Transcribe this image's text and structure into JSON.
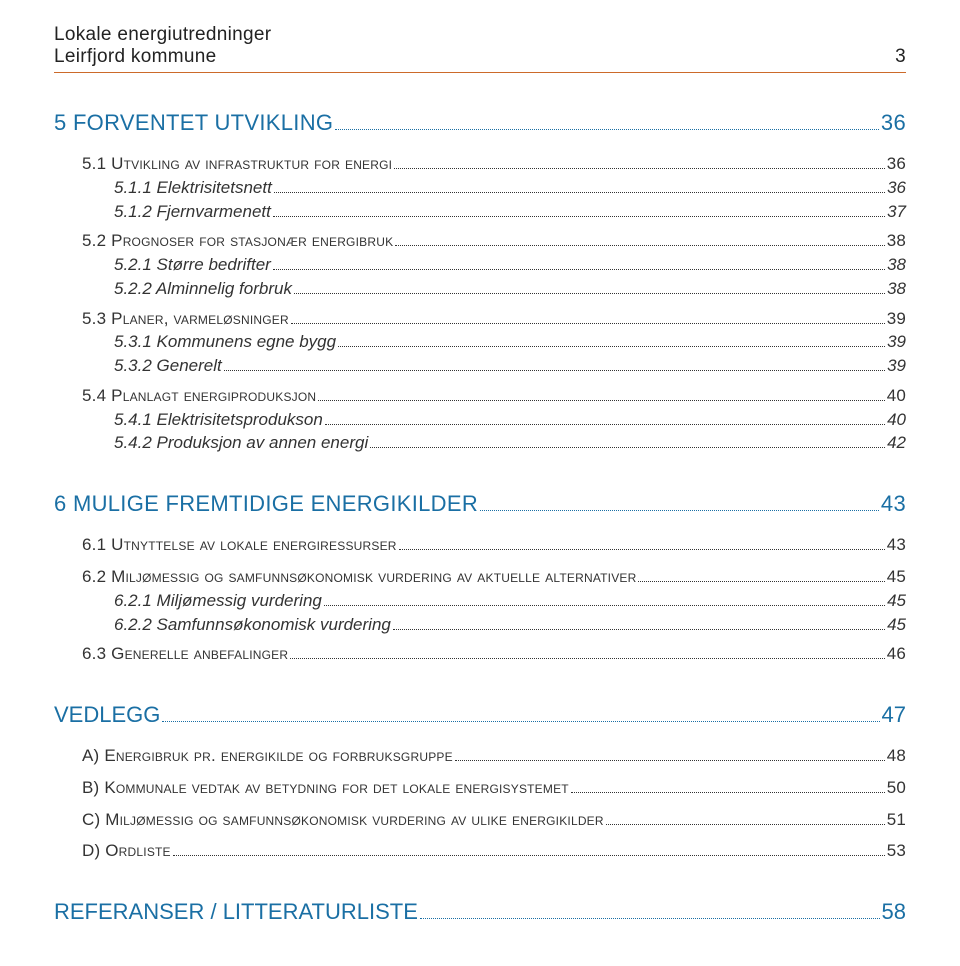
{
  "header": {
    "title": "Lokale energiutredninger",
    "subtitle": "Leirfjord kommune",
    "page_num": "3",
    "rule_color": "#cc6a2a"
  },
  "colors": {
    "l1": "#1a6fa4",
    "text": "#333333",
    "dot": "#333333"
  },
  "toc": {
    "s5": {
      "label": "5  FORVENTET UTVIKLING",
      "page": "36"
    },
    "s5_1": {
      "label": "5.1  Utvikling av infrastruktur for energi",
      "page": "36"
    },
    "s5_1_1": {
      "label": "5.1.1  Elektrisitetsnett",
      "page": "36"
    },
    "s5_1_2": {
      "label": "5.1.2  Fjernvarmenett",
      "page": "37"
    },
    "s5_2": {
      "label": "5.2  Prognoser for stasjonær energibruk",
      "page": "38"
    },
    "s5_2_1": {
      "label": "5.2.1  Større bedrifter",
      "page": "38"
    },
    "s5_2_2": {
      "label": "5.2.2  Alminnelig forbruk",
      "page": "38"
    },
    "s5_3": {
      "label": "5.3  Planer, varmeløsninger",
      "page": "39"
    },
    "s5_3_1": {
      "label": "5.3.1  Kommunens egne bygg",
      "page": "39"
    },
    "s5_3_2": {
      "label": "5.3.2  Generelt",
      "page": "39"
    },
    "s5_4": {
      "label": "5.4  Planlagt energiproduksjon",
      "page": "40"
    },
    "s5_4_1": {
      "label": "5.4.1  Elektrisitetsprodukson",
      "page": "40"
    },
    "s5_4_2": {
      "label": "5.4.2  Produksjon av annen energi",
      "page": "42"
    },
    "s6": {
      "label": "6  MULIGE FREMTIDIGE ENERGIKILDER",
      "page": "43"
    },
    "s6_1": {
      "label": "6.1  Utnyttelse av lokale energiressurser",
      "page": "43"
    },
    "s6_2": {
      "label": "6.2  Miljømessig og samfunnsøkonomisk vurdering av aktuelle alternativer",
      "page": "45"
    },
    "s6_2_1": {
      "label": "6.2.1  Miljømessig vurdering",
      "page": "45"
    },
    "s6_2_2": {
      "label": "6.2.2  Samfunnsøkonomisk vurdering",
      "page": "45"
    },
    "s6_3": {
      "label": "6.3  Generelle anbefalinger",
      "page": "46"
    },
    "vedlegg": {
      "label": "VEDLEGG",
      "page": "47"
    },
    "va": {
      "label": "A)  Energibruk pr. energikilde og forbruksgruppe",
      "page": "48"
    },
    "vb": {
      "label": "B)  Kommunale vedtak av betydning for det lokale energisystemet",
      "page": "50"
    },
    "vc": {
      "label": "C)  Miljømessig og samfunnsøkonomisk vurdering av ulike energikilder",
      "page": "51"
    },
    "vd": {
      "label": "D)  Ordliste",
      "page": "53"
    },
    "ref": {
      "label": "REFERANSER / LITTERATURLISTE",
      "page": "58"
    }
  }
}
